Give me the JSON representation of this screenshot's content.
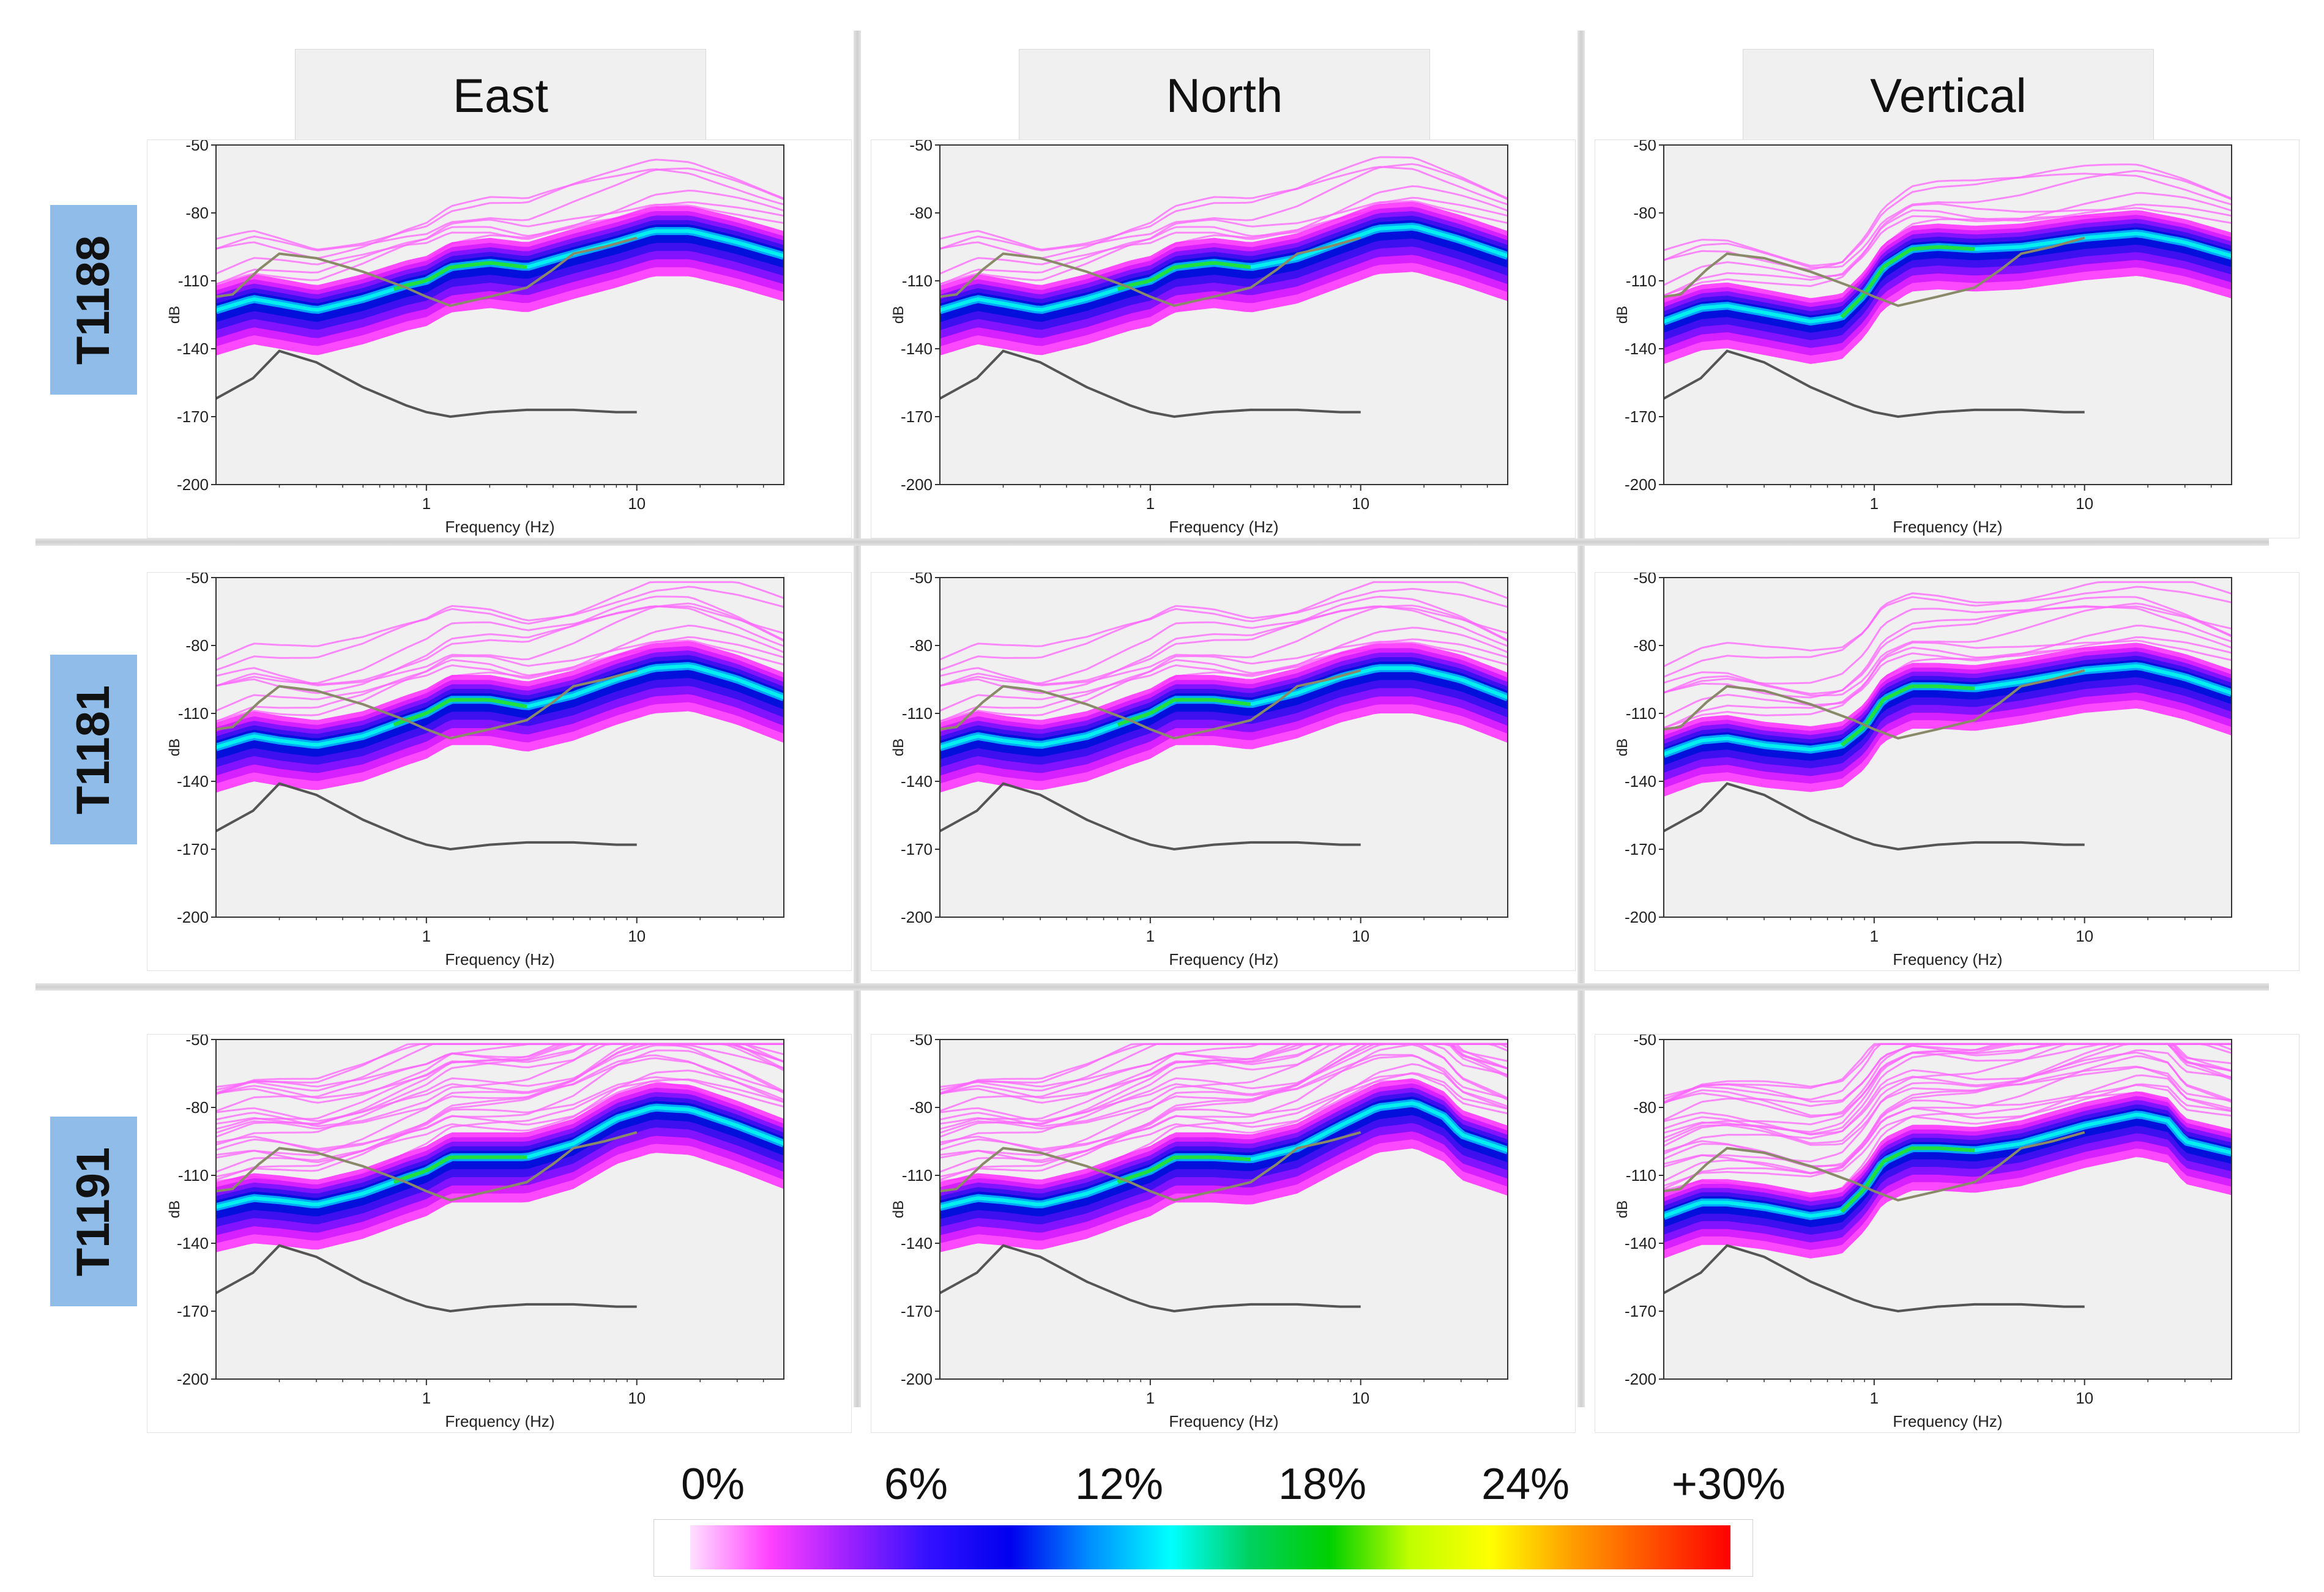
{
  "columns": [
    "East",
    "North",
    "Vertical"
  ],
  "rows": [
    "T1188",
    "T1181",
    "T1191"
  ],
  "colorbar": {
    "labels": [
      "0%",
      "6%",
      "12%",
      "18%",
      "24%",
      "+30%"
    ],
    "stops": [
      "#ffe0ff",
      "#ff40ff",
      "#9a20ff",
      "#3010ff",
      "#0000ee",
      "#0090ff",
      "#00ffff",
      "#00d060",
      "#00d000",
      "#c0ff00",
      "#ffff00",
      "#ffa000",
      "#ff5000",
      "#ff0000"
    ]
  },
  "chart_data": {
    "type": "line",
    "description_rows": "3 stations x 3 components, probability density function of power spectral density",
    "xlabel": "Frequency (Hz)",
    "ylabel": "dB",
    "x_scale": "log",
    "x_ticks": [
      "1",
      "10"
    ],
    "y_ticks": [
      "-50",
      "-80",
      "-110",
      "-140",
      "-170",
      "-200"
    ],
    "xlim": [
      0.1,
      50
    ],
    "ylim": [
      -200,
      -50
    ],
    "new_low_noise_model": {
      "x": [
        0.1,
        0.15,
        0.2,
        0.3,
        0.5,
        0.8,
        1.0,
        1.3,
        2,
        3,
        5,
        8,
        10
      ],
      "y": [
        -162,
        -153,
        -141,
        -146,
        -157,
        -165,
        -168,
        -170,
        -168,
        -167,
        -167,
        -168,
        -168
      ]
    },
    "new_high_noise_model": {
      "x": [
        0.1,
        0.12,
        0.16,
        0.2,
        0.3,
        0.5,
        0.8,
        1.0,
        1.3,
        2,
        3,
        4,
        5,
        7,
        10
      ],
      "y": [
        -117,
        -116,
        -105,
        -98,
        -100,
        -106,
        -113,
        -117,
        -121,
        -117,
        -113,
        -105,
        -98,
        -95,
        -91
      ]
    },
    "panels": [
      {
        "row": "T1188",
        "component": "East",
        "mode": [
          [
            0.1,
            -123
          ],
          [
            0.15,
            -118
          ],
          [
            0.2,
            -120
          ],
          [
            0.3,
            -123
          ],
          [
            0.5,
            -118
          ],
          [
            0.8,
            -112
          ],
          [
            1,
            -110
          ],
          [
            1.3,
            -104
          ],
          [
            2,
            -102
          ],
          [
            3,
            -104
          ],
          [
            5,
            -98
          ],
          [
            8,
            -93
          ],
          [
            12,
            -88
          ],
          [
            18,
            -88
          ],
          [
            30,
            -93
          ],
          [
            50,
            -99
          ]
        ],
        "spread": 16
      },
      {
        "row": "T1188",
        "component": "North",
        "mode": [
          [
            0.1,
            -123
          ],
          [
            0.15,
            -118
          ],
          [
            0.2,
            -120
          ],
          [
            0.3,
            -123
          ],
          [
            0.5,
            -118
          ],
          [
            0.8,
            -112
          ],
          [
            1,
            -110
          ],
          [
            1.3,
            -104
          ],
          [
            2,
            -102
          ],
          [
            3,
            -104
          ],
          [
            5,
            -100
          ],
          [
            8,
            -93
          ],
          [
            12,
            -87
          ],
          [
            18,
            -86
          ],
          [
            30,
            -92
          ],
          [
            50,
            -99
          ]
        ],
        "spread": 16
      },
      {
        "row": "T1188",
        "component": "Vertical",
        "mode": [
          [
            0.1,
            -128
          ],
          [
            0.15,
            -122
          ],
          [
            0.2,
            -121
          ],
          [
            0.3,
            -124
          ],
          [
            0.5,
            -128
          ],
          [
            0.7,
            -126
          ],
          [
            0.9,
            -116
          ],
          [
            1.1,
            -104
          ],
          [
            1.5,
            -96
          ],
          [
            2,
            -95
          ],
          [
            3,
            -96
          ],
          [
            5,
            -95
          ],
          [
            10,
            -91
          ],
          [
            18,
            -89
          ],
          [
            30,
            -93
          ],
          [
            50,
            -99
          ]
        ],
        "spread": 15
      },
      {
        "row": "T1181",
        "component": "East",
        "mode": [
          [
            0.1,
            -125
          ],
          [
            0.15,
            -120
          ],
          [
            0.2,
            -122
          ],
          [
            0.3,
            -124
          ],
          [
            0.5,
            -120
          ],
          [
            0.8,
            -113
          ],
          [
            1,
            -110
          ],
          [
            1.3,
            -104
          ],
          [
            2,
            -104
          ],
          [
            3,
            -107
          ],
          [
            5,
            -102
          ],
          [
            8,
            -95
          ],
          [
            12,
            -90
          ],
          [
            18,
            -89
          ],
          [
            30,
            -95
          ],
          [
            50,
            -103
          ]
        ],
        "spread": 16
      },
      {
        "row": "T1181",
        "component": "North",
        "mode": [
          [
            0.1,
            -125
          ],
          [
            0.15,
            -120
          ],
          [
            0.2,
            -122
          ],
          [
            0.3,
            -124
          ],
          [
            0.5,
            -120
          ],
          [
            0.8,
            -113
          ],
          [
            1,
            -110
          ],
          [
            1.3,
            -104
          ],
          [
            2,
            -104
          ],
          [
            3,
            -106
          ],
          [
            5,
            -101
          ],
          [
            8,
            -94
          ],
          [
            12,
            -90
          ],
          [
            18,
            -90
          ],
          [
            30,
            -95
          ],
          [
            50,
            -103
          ]
        ],
        "spread": 16
      },
      {
        "row": "T1181",
        "component": "Vertical",
        "mode": [
          [
            0.1,
            -128
          ],
          [
            0.15,
            -122
          ],
          [
            0.2,
            -121
          ],
          [
            0.3,
            -124
          ],
          [
            0.5,
            -126
          ],
          [
            0.7,
            -124
          ],
          [
            0.9,
            -116
          ],
          [
            1.1,
            -104
          ],
          [
            1.5,
            -98
          ],
          [
            2,
            -98
          ],
          [
            3,
            -99
          ],
          [
            5,
            -96
          ],
          [
            10,
            -91
          ],
          [
            18,
            -89
          ],
          [
            30,
            -94
          ],
          [
            50,
            -101
          ]
        ],
        "spread": 15
      },
      {
        "row": "T1191",
        "component": "East",
        "mode": [
          [
            0.1,
            -124
          ],
          [
            0.15,
            -120
          ],
          [
            0.2,
            -121
          ],
          [
            0.3,
            -123
          ],
          [
            0.5,
            -118
          ],
          [
            0.8,
            -111
          ],
          [
            1,
            -108
          ],
          [
            1.3,
            -102
          ],
          [
            2,
            -102
          ],
          [
            3,
            -102
          ],
          [
            5,
            -96
          ],
          [
            8,
            -85
          ],
          [
            12,
            -80
          ],
          [
            18,
            -81
          ],
          [
            30,
            -88
          ],
          [
            50,
            -96
          ]
        ],
        "spread": 16
      },
      {
        "row": "T1191",
        "component": "North",
        "mode": [
          [
            0.1,
            -124
          ],
          [
            0.15,
            -120
          ],
          [
            0.2,
            -121
          ],
          [
            0.3,
            -123
          ],
          [
            0.5,
            -118
          ],
          [
            0.8,
            -111
          ],
          [
            1,
            -108
          ],
          [
            1.3,
            -102
          ],
          [
            2,
            -102
          ],
          [
            3,
            -103
          ],
          [
            5,
            -98
          ],
          [
            8,
            -88
          ],
          [
            12,
            -80
          ],
          [
            18,
            -78
          ],
          [
            25,
            -84
          ],
          [
            30,
            -92
          ],
          [
            50,
            -99
          ]
        ],
        "spread": 16
      },
      {
        "row": "T1191",
        "component": "Vertical",
        "mode": [
          [
            0.1,
            -128
          ],
          [
            0.15,
            -122
          ],
          [
            0.2,
            -122
          ],
          [
            0.3,
            -124
          ],
          [
            0.5,
            -128
          ],
          [
            0.7,
            -126
          ],
          [
            0.9,
            -116
          ],
          [
            1.1,
            -104
          ],
          [
            1.5,
            -98
          ],
          [
            2,
            -98
          ],
          [
            3,
            -99
          ],
          [
            5,
            -96
          ],
          [
            10,
            -88
          ],
          [
            18,
            -83
          ],
          [
            25,
            -86
          ],
          [
            30,
            -95
          ],
          [
            50,
            -100
          ]
        ],
        "spread": 15
      }
    ]
  }
}
